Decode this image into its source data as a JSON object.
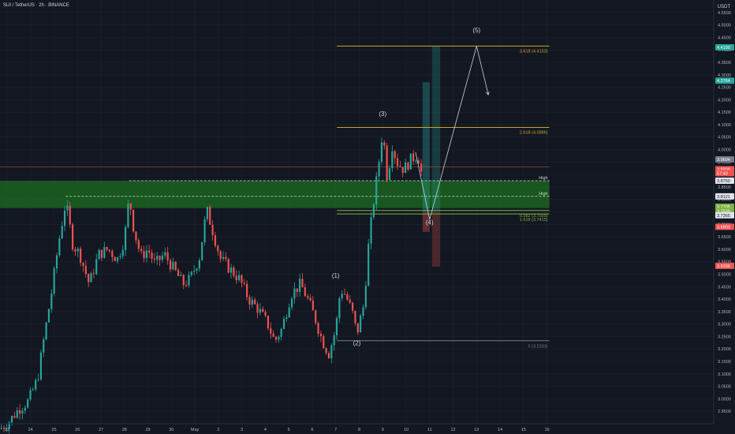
{
  "header": {
    "symbol_title": "SUI / TetherUS · 2h · BINANCE",
    "currency": "USDT"
  },
  "colors": {
    "bg": "#131722",
    "up": "#26a69a",
    "down": "#ef5350",
    "fib": "#c9a227",
    "zone": "#1f8a1f",
    "grid": "#1e222d"
  },
  "chart_data": {
    "type": "candlestick",
    "ylim": [
      2.9,
      4.6
    ],
    "xlim": [
      0,
      30.4
    ],
    "y_ticks": [
      2.95,
      3.0,
      3.05,
      3.1,
      3.15,
      3.2,
      3.25,
      3.3,
      3.35,
      3.4,
      3.45,
      3.5,
      3.55,
      3.6,
      3.65,
      3.7,
      3.75,
      3.8,
      3.85,
      3.9,
      3.95,
      4.0,
      4.05,
      4.1,
      4.15,
      4.2,
      4.25,
      4.3,
      4.35,
      4.4,
      4.45,
      4.5,
      4.55
    ],
    "y_tick_labels": [
      "2.9500",
      "3.0000",
      "3.0500",
      "3.1000",
      "3.1500",
      "3.2000",
      "3.2500",
      "3.3000",
      "3.3500",
      "3.4000",
      "3.4500",
      "3.5000",
      "3.5500",
      "3.6000",
      "3.6500",
      "3.7000",
      "3.7500",
      "3.8000",
      "3.8500",
      "3.9000",
      "3.9500",
      "4.0000",
      "4.0500",
      "4.1000",
      "4.1500",
      "4.2000",
      "4.2500",
      "4.3000",
      "4.3500",
      "4.4000",
      "4.4500",
      "4.5000",
      "4.5500"
    ],
    "x_ticks": [
      {
        "x": 0.3,
        "label": "23"
      },
      {
        "x": 1.3,
        "label": "24"
      },
      {
        "x": 2.3,
        "label": "25"
      },
      {
        "x": 3.3,
        "label": "26"
      },
      {
        "x": 4.3,
        "label": "27"
      },
      {
        "x": 5.3,
        "label": "28"
      },
      {
        "x": 6.3,
        "label": "29"
      },
      {
        "x": 7.3,
        "label": "30"
      },
      {
        "x": 8.3,
        "label": "May"
      },
      {
        "x": 9.3,
        "label": "2"
      },
      {
        "x": 10.3,
        "label": "3"
      },
      {
        "x": 11.3,
        "label": "4"
      },
      {
        "x": 12.3,
        "label": "5"
      },
      {
        "x": 13.3,
        "label": "6"
      },
      {
        "x": 14.3,
        "label": "7"
      },
      {
        "x": 15.3,
        "label": "8"
      },
      {
        "x": 16.3,
        "label": "9"
      },
      {
        "x": 17.3,
        "label": "10"
      },
      {
        "x": 18.3,
        "label": "11"
      },
      {
        "x": 19.3,
        "label": "12"
      },
      {
        "x": 20.3,
        "label": "13"
      },
      {
        "x": 21.3,
        "label": "14"
      },
      {
        "x": 22.3,
        "label": "15"
      },
      {
        "x": 23.3,
        "label": "16"
      }
    ],
    "anchors": [
      [
        0.0,
        2.88
      ],
      [
        0.4,
        2.91
      ],
      [
        0.8,
        2.96
      ],
      [
        1.2,
        2.99
      ],
      [
        1.6,
        3.08
      ],
      [
        1.9,
        3.26
      ],
      [
        2.2,
        3.43
      ],
      [
        2.5,
        3.63
      ],
      [
        2.8,
        3.79
      ],
      [
        3.1,
        3.62
      ],
      [
        3.4,
        3.58
      ],
      [
        3.8,
        3.46
      ],
      [
        4.2,
        3.58
      ],
      [
        4.6,
        3.6
      ],
      [
        5.0,
        3.56
      ],
      [
        5.3,
        3.64
      ],
      [
        5.5,
        3.81
      ],
      [
        5.7,
        3.68
      ],
      [
        6.0,
        3.57
      ],
      [
        6.3,
        3.6
      ],
      [
        6.6,
        3.54
      ],
      [
        7.0,
        3.58
      ],
      [
        7.4,
        3.52
      ],
      [
        7.8,
        3.46
      ],
      [
        8.1,
        3.48
      ],
      [
        8.5,
        3.57
      ],
      [
        8.8,
        3.76
      ],
      [
        9.1,
        3.66
      ],
      [
        9.4,
        3.56
      ],
      [
        9.8,
        3.52
      ],
      [
        10.2,
        3.48
      ],
      [
        10.6,
        3.4
      ],
      [
        11.0,
        3.36
      ],
      [
        11.4,
        3.3
      ],
      [
        11.7,
        3.23
      ],
      [
        12.0,
        3.28
      ],
      [
        12.4,
        3.42
      ],
      [
        12.8,
        3.46
      ],
      [
        13.1,
        3.4
      ],
      [
        13.4,
        3.33
      ],
      [
        13.7,
        3.24
      ],
      [
        14.0,
        3.18
      ],
      [
        14.3,
        3.28
      ],
      [
        14.5,
        3.44
      ],
      [
        14.7,
        3.42
      ],
      [
        15.0,
        3.35
      ],
      [
        15.2,
        3.26
      ],
      [
        15.5,
        3.38
      ],
      [
        15.7,
        3.62
      ],
      [
        15.9,
        3.78
      ],
      [
        16.1,
        3.92
      ],
      [
        16.3,
        4.08
      ],
      [
        16.5,
        3.88
      ],
      [
        16.7,
        4.02
      ],
      [
        16.9,
        3.95
      ],
      [
        17.2,
        3.92
      ],
      [
        17.5,
        3.96
      ],
      [
        17.8,
        3.98
      ],
      [
        18.0,
        3.88
      ]
    ],
    "candle_count": 160,
    "horizontal_levels": [
      {
        "price": 4.4153,
        "x0": 14.35,
        "x1": 23.4,
        "color": "#c9a227",
        "label": "3.618 (4.4153)"
      },
      {
        "price": 4.0886,
        "x0": 14.35,
        "x1": 23.4,
        "color": "#c9a227",
        "label": "2.618 (4.0886)"
      },
      {
        "price": 3.7555,
        "x0": 14.35,
        "x1": 23.4,
        "color": "#7cb342",
        "label": "0.382 (3.7555)"
      },
      {
        "price": 3.7415,
        "x0": 14.35,
        "x1": 23.4,
        "color": "#7cb342",
        "label": "1.618 (3.7415)"
      },
      {
        "price": 3.2333,
        "x0": 14.35,
        "x1": 23.4,
        "color": "#787b86",
        "label": "0 (3.2333)"
      },
      {
        "price": 3.93,
        "x0": 0,
        "x1": 23.4,
        "color": "#b05030",
        "label": "",
        "thin": true
      }
    ],
    "zone": {
      "top": 3.875,
      "bottom": 3.765,
      "color": "#1f8a1f"
    },
    "dashed_lines": [
      {
        "price": 3.875,
        "x0": 5.5,
        "label": "High"
      },
      {
        "price": 3.8121,
        "x0": 2.8,
        "label": "High"
      }
    ],
    "wave_labels": [
      {
        "text": "(1)",
        "x": 14.3,
        "y": 3.485
      },
      {
        "text": "(2)",
        "x": 15.2,
        "y": 3.215
      },
      {
        "text": "(3)",
        "x": 16.3,
        "y": 4.135
      },
      {
        "text": "(4)",
        "x": 18.3,
        "y": 3.7
      },
      {
        "text": "(5)",
        "x": 20.3,
        "y": 4.47
      }
    ],
    "projection_path": [
      [
        17.7,
        3.99
      ],
      [
        18.3,
        3.72
      ],
      [
        20.3,
        4.415
      ],
      [
        20.8,
        4.22
      ]
    ],
    "boxes": [
      {
        "x0": 18.0,
        "x1": 18.3,
        "top": 4.27,
        "bottom": 3.75,
        "color": "#26a69a",
        "opacity": 0.35
      },
      {
        "x0": 18.0,
        "x1": 18.3,
        "top": 3.75,
        "bottom": 3.67,
        "color": "#ef5350",
        "opacity": 0.35
      },
      {
        "x0": 18.4,
        "x1": 18.75,
        "top": 4.415,
        "bottom": 3.75,
        "color": "#26a69a",
        "opacity": 0.25
      },
      {
        "x0": 18.4,
        "x1": 18.75,
        "top": 3.75,
        "bottom": 3.53,
        "color": "#ef5350",
        "opacity": 0.25
      }
    ],
    "price_tags": [
      {
        "price": 4.41,
        "text": "4.4100",
        "bg": "#26a69a"
      },
      {
        "price": 4.2764,
        "text": "4.2764",
        "bg": "#26a69a"
      },
      {
        "price": 3.9604,
        "text": "3.9604",
        "bg": "#787b86"
      },
      {
        "price": 3.9209,
        "text": "3.9209",
        "bg": "#ef5350"
      },
      {
        "price": 3.905,
        "text": "57:40",
        "bg": "#ef5350"
      },
      {
        "price": 3.875,
        "text": "3.8750",
        "bg": "#e0e3eb",
        "fg": "#131722"
      },
      {
        "price": 3.8121,
        "text": "3.8121",
        "bg": "#e0e3eb",
        "fg": "#131722"
      },
      {
        "price": 3.7705,
        "text": "3.7705",
        "bg": "#7cb342"
      },
      {
        "price": 3.7535,
        "text": "3.7535",
        "bg": "#7cb342"
      },
      {
        "price": 3.7365,
        "text": "3.7365",
        "bg": "#e0e3eb",
        "fg": "#131722"
      },
      {
        "price": 3.6903,
        "text": "3.6903",
        "bg": "#ef5350"
      },
      {
        "price": 3.5336,
        "text": "3.5336",
        "bg": "#ef5350"
      }
    ]
  }
}
